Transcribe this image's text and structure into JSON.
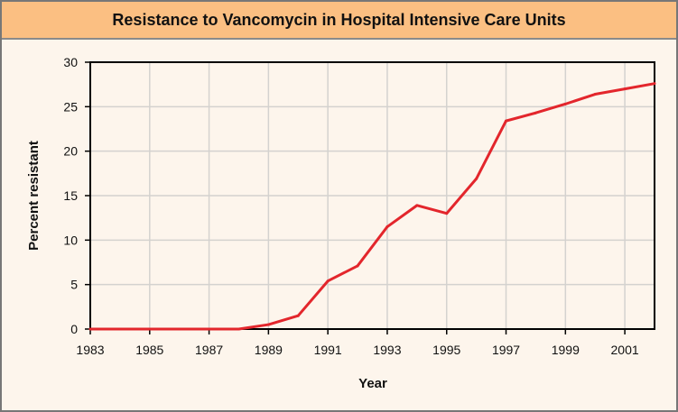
{
  "chart_data": {
    "type": "line",
    "title": "Resistance to Vancomycin in Hospital Intensive Care Units",
    "xlabel": "Year",
    "ylabel": "Percent resistant",
    "xlim": [
      1983,
      2002
    ],
    "ylim": [
      0,
      30
    ],
    "xticks": [
      "1983",
      "1985",
      "1987",
      "1989",
      "1991",
      "1993",
      "1995",
      "1997",
      "1999",
      "2001"
    ],
    "yticks": [
      "0",
      "5",
      "10",
      "15",
      "20",
      "25",
      "30"
    ],
    "grid": true,
    "series": [
      {
        "color": "#e3262c",
        "x": [
          1983,
          1984,
          1985,
          1986,
          1987,
          1988,
          1989,
          1990,
          1991,
          1992,
          1993,
          1994,
          1995,
          1996,
          1997,
          1998,
          1999,
          2000,
          2001,
          2002
        ],
        "values": [
          0,
          0,
          0,
          0,
          0,
          0,
          0.5,
          1.5,
          5.4,
          7.1,
          11.5,
          13.9,
          13.0,
          16.9,
          23.4,
          24.3,
          25.3,
          26.4,
          27.0,
          27.6
        ]
      }
    ]
  }
}
